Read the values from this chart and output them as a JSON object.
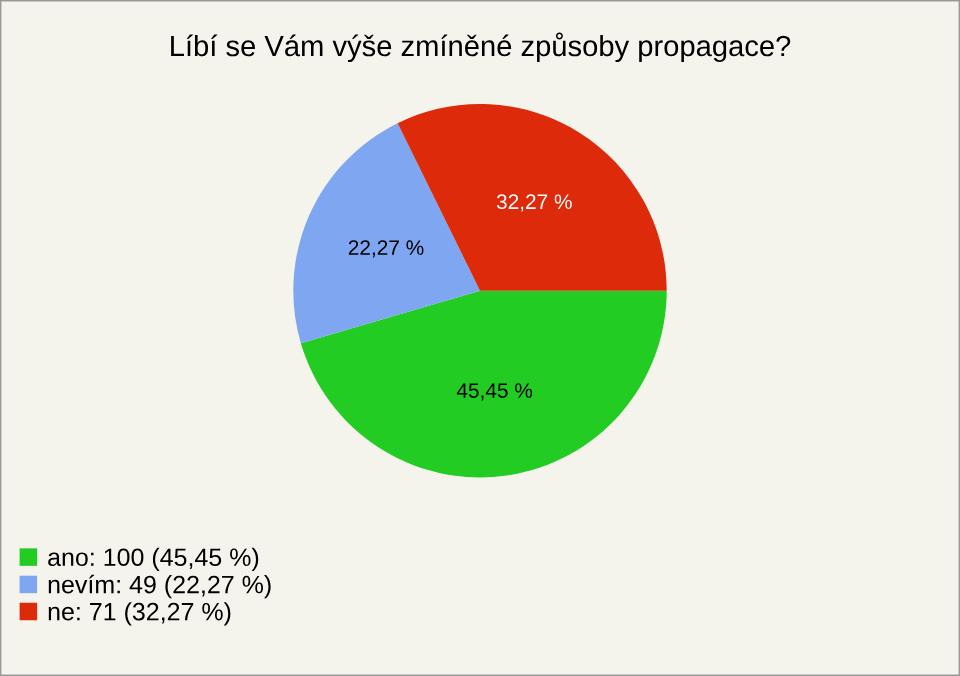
{
  "chart_data": {
    "type": "pie",
    "title": "Líbí se Vám výše zmíněné způsoby propagace?",
    "categories": [
      "ano: 100 (45,45 %)",
      "nevím: 49 (22,27 %)",
      "ne: 71 (32,27 %)"
    ],
    "values": [
      45.45,
      22.27,
      32.27
    ],
    "colors": [
      "#22cc22",
      "#7fa6f0",
      "#dd2a0a"
    ],
    "value_labels": [
      "45,45 %",
      "22,27 %",
      "32,27 %"
    ],
    "legend": "bottom left"
  }
}
